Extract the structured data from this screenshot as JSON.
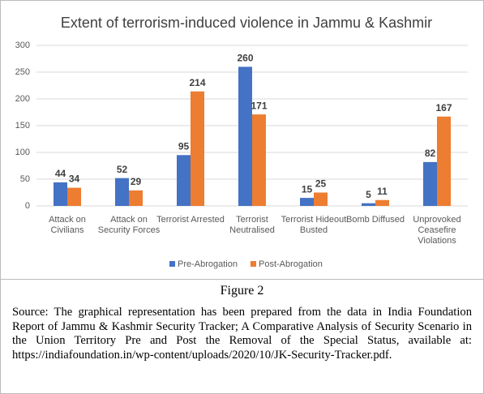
{
  "chart_data": {
    "type": "bar",
    "title": "Extent of terrorism-induced violence in Jammu & Kashmir",
    "categories": [
      "Attack on Civilians",
      "Attack on Security Forces",
      "Terrorist Arrested",
      "Terrorist Neutralised",
      "Terrorist Hideout Busted",
      "Bomb Diffused",
      "Unprovoked Ceasefire Violations"
    ],
    "series": [
      {
        "name": "Pre-Abrogation",
        "color": "#4472c4",
        "values": [
          44,
          52,
          95,
          260,
          15,
          5,
          82
        ]
      },
      {
        "name": "Post-Abrogation",
        "color": "#ed7d31",
        "values": [
          34,
          29,
          214,
          171,
          25,
          11,
          167
        ]
      }
    ],
    "ylim": [
      0,
      300
    ],
    "yticks": [
      0,
      50,
      100,
      150,
      200,
      250,
      300
    ],
    "grid": true,
    "legend": "bottom"
  },
  "figure": {
    "label": "Figure 2",
    "source": "Source: The graphical representation has been prepared from the data in India Foundation Report of Jammu & Kashmir Security Tracker; A Comparative Analysis of Security Scenario in the Union Territory Pre and Post the Removal of the Special Status, available at: https://indiafoundation.in/wp-content/uploads/2020/10/JK-Security-Tracker.pdf."
  }
}
